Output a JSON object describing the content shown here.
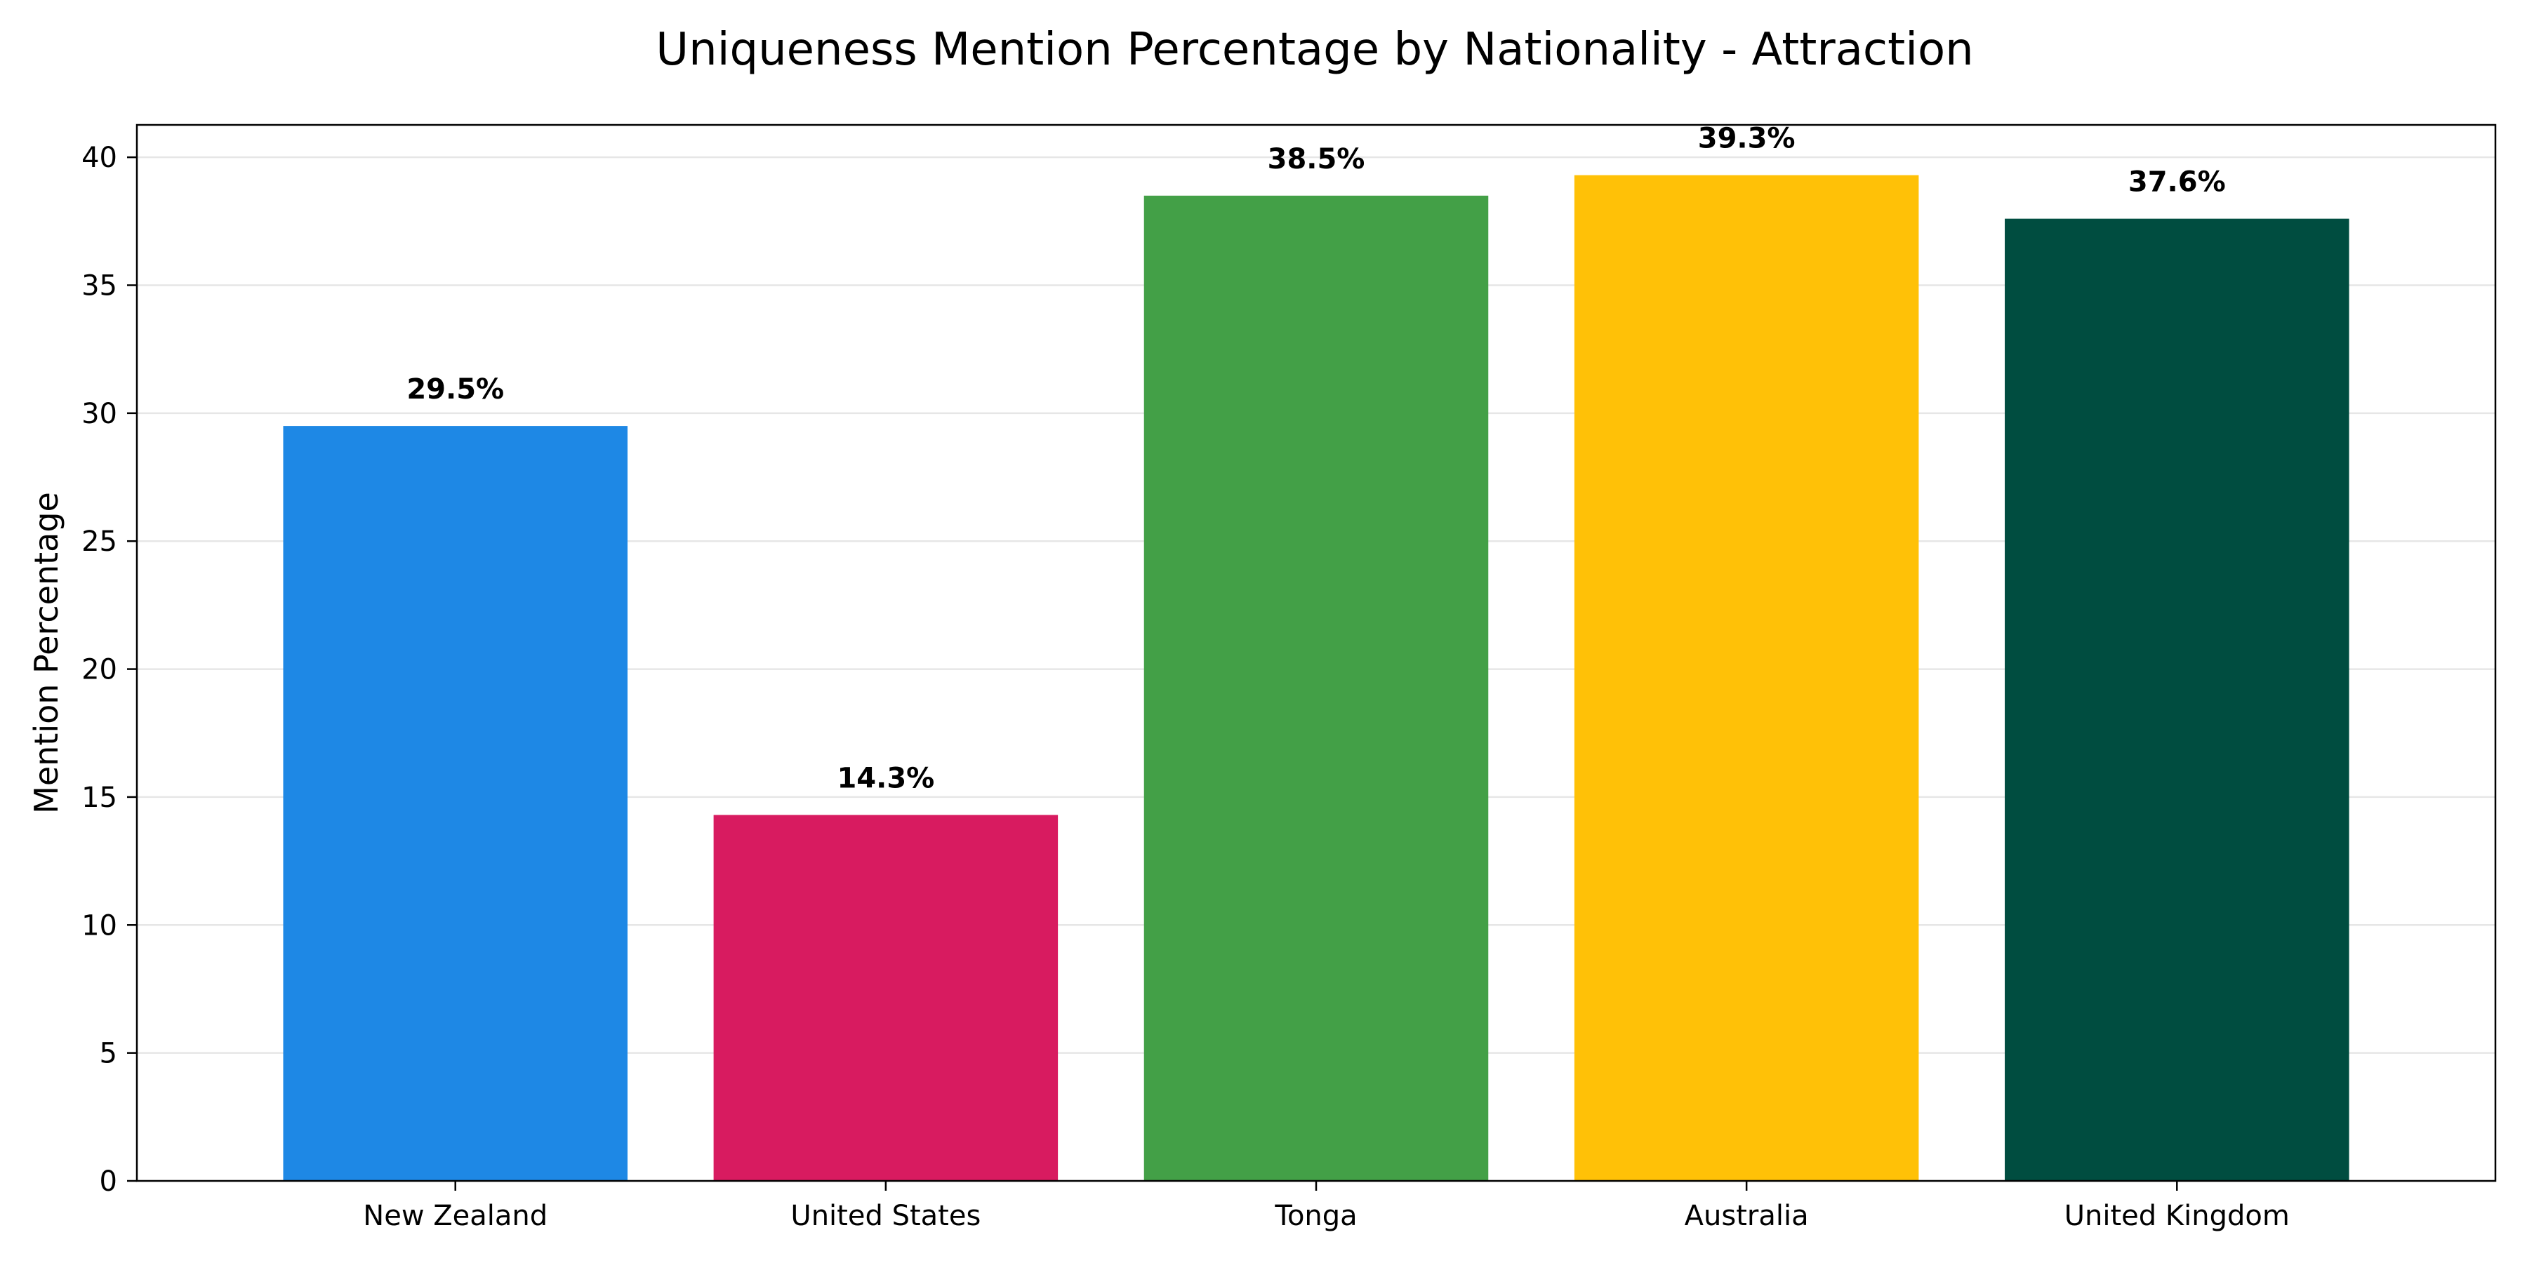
{
  "chart_data": {
    "type": "bar",
    "title": "Uniqueness Mention Percentage by Nationality - Attraction",
    "xlabel": "",
    "ylabel": "Mention Percentage",
    "categories": [
      "New Zealand",
      "United States",
      "Tonga",
      "Australia",
      "United Kingdom"
    ],
    "values": [
      29.5,
      14.3,
      38.5,
      39.3,
      37.6
    ],
    "value_labels": [
      "29.5%",
      "14.3%",
      "38.5%",
      "39.3%",
      "37.6%"
    ],
    "colors": [
      "#1e88e5",
      "#d81b60",
      "#43a047",
      "#ffc107",
      "#004d40"
    ],
    "ylim": [
      0,
      41.265
    ],
    "yticks": [
      0,
      5,
      10,
      15,
      20,
      25,
      30,
      35,
      40
    ],
    "grid": "y",
    "legend": "none"
  }
}
